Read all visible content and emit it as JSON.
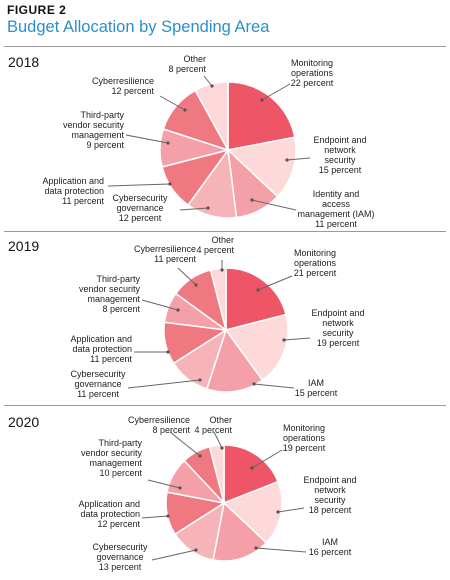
{
  "figure_label": "FIGURE 2",
  "title": "Budget Allocation by Spending Area",
  "colors": [
    "#ee5566",
    "#fdd9d9",
    "#f5a0a8",
    "#f7b4b8",
    "#f07880",
    "#f5a0a8",
    "#f07880",
    "#fcd8d8"
  ],
  "chart_data": [
    {
      "type": "pie",
      "title": "2018",
      "slices": [
        {
          "label": "Monitoring operations",
          "value_label": "22 percent",
          "value": 22
        },
        {
          "label": "Endpoint and network security",
          "value_label": "15 percent",
          "value": 15
        },
        {
          "label": "Identity and access management (IAM)",
          "value_label": "11 percent",
          "value": 11
        },
        {
          "label": "Cybersecurity governance",
          "value_label": "12 percent",
          "value": 12
        },
        {
          "label": "Application and data protection",
          "value_label": "11 percent",
          "value": 11
        },
        {
          "label": "Third-party vendor security management",
          "value_label": "9 percent",
          "value": 9
        },
        {
          "label": "Cyberresilience",
          "value_label": "12 percent",
          "value": 12
        },
        {
          "label": "Other",
          "value_label": "8 percent",
          "value": 8
        }
      ]
    },
    {
      "type": "pie",
      "title": "2019",
      "slices": [
        {
          "label": "Monitoring operations",
          "value_label": "21 percent",
          "value": 21
        },
        {
          "label": "Endpoint and network security",
          "value_label": "19 percent",
          "value": 19
        },
        {
          "label": "IAM",
          "value_label": "15 percent",
          "value": 15
        },
        {
          "label": "Cybersecurity governance",
          "value_label": "11 percent",
          "value": 11
        },
        {
          "label": "Application and data protection",
          "value_label": "11 percent",
          "value": 11
        },
        {
          "label": "Third-party vendor security management",
          "value_label": "8 percent",
          "value": 8
        },
        {
          "label": "Cyberresilience",
          "value_label": "11 percent",
          "value": 11
        },
        {
          "label": "Other",
          "value_label": "4 percent",
          "value": 4
        }
      ]
    },
    {
      "type": "pie",
      "title": "2020",
      "slices": [
        {
          "label": "Monitoring operations",
          "value_label": "19 percent",
          "value": 19
        },
        {
          "label": "Endpoint and network security",
          "value_label": "18 percent",
          "value": 18
        },
        {
          "label": "IAM",
          "value_label": "16 percent",
          "value": 16
        },
        {
          "label": "Cybersecurity governance",
          "value_label": "13 percent",
          "value": 13
        },
        {
          "label": "Application and data protection",
          "value_label": "12 percent",
          "value": 12
        },
        {
          "label": "Third-party vendor security management",
          "value_label": "10 percent",
          "value": 10
        },
        {
          "label": "Cyberresilience",
          "value_label": "8 percent",
          "value": 8
        },
        {
          "label": "Other",
          "value_label": "4 percent",
          "value": 4
        }
      ]
    }
  ]
}
